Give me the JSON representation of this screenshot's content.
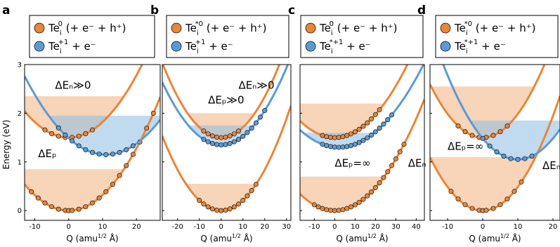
{
  "figure": {
    "ylabel": "Energy  (eV)",
    "xlabel_main": "Q (amu",
    "xlabel_sup": "1/2",
    "xlabel_end": " Å)"
  },
  "colors": {
    "orange": "#E8863A",
    "blue": "#5B9BD5",
    "orange_fill": "#F2B07E",
    "blue_fill": "#8DBBE3",
    "frame": "#000000"
  },
  "chart_data": [
    {
      "type": "line",
      "panel_label": "a",
      "legend": [
        {
          "color": "orange",
          "main": "Te",
          "sub": "i",
          "sup": "0",
          "rest": " (+ e⁻ + h⁺)"
        },
        {
          "color": "blue",
          "main": "Te",
          "sub": "i",
          "sup": "+1",
          "rest": " + e⁻"
        }
      ],
      "xlim": [
        -13,
        27
      ],
      "ylim": [
        -0.2,
        3.0
      ],
      "xticks": [
        -10,
        0,
        10,
        20
      ],
      "yticks": [
        0,
        1,
        2,
        3
      ],
      "series": [
        {
          "color": "orange",
          "min_x": 0,
          "min_y": 0.0,
          "curv": 0.0032,
          "pts": [
            -11,
            -9,
            -7,
            -5,
            -3,
            -1,
            0,
            1,
            3,
            5,
            7,
            9,
            11,
            13,
            15,
            17,
            19,
            21,
            23,
            25
          ]
        },
        {
          "color": "orange",
          "min_x": 0,
          "min_y": 1.5,
          "curv": 0.0032,
          "pts": [
            -7,
            -5,
            -3,
            -1,
            1,
            3,
            5,
            7
          ]
        },
        {
          "color": "blue",
          "min_x": 11,
          "min_y": 1.15,
          "curv": 0.0028,
          "pts": [
            -3,
            -1,
            1,
            3,
            5,
            7,
            9,
            11,
            13,
            15,
            17,
            19
          ]
        }
      ],
      "fills": [
        {
          "color": "orange",
          "min_x": 0,
          "min_y": 0.0,
          "curv": 0.0032,
          "top": 0.85
        },
        {
          "color": "orange",
          "min_x": 0,
          "min_y": 1.5,
          "curv": 0.0032,
          "top": 2.35
        },
        {
          "color": "blue",
          "min_x": 11,
          "min_y": 1.15,
          "curv": 0.0028,
          "top": 1.95
        }
      ],
      "annotations": [
        {
          "text": "ΔEₙ≫0",
          "x": -4,
          "y": 2.5
        },
        {
          "text": "ΔEₚ",
          "x": -9,
          "y": 1.1
        }
      ]
    },
    {
      "type": "line",
      "panel_label": "b",
      "legend": [
        {
          "color": "orange",
          "main": "Te",
          "sub": "i",
          "sup": "*0",
          "rest": " (+ e⁻ + h⁺)"
        },
        {
          "color": "blue",
          "main": "Te",
          "sub": "i",
          "sup": "+1",
          "rest": " + e⁻"
        }
      ],
      "xlim": [
        -27,
        32
      ],
      "ylim": [
        -0.2,
        3.0
      ],
      "xticks": [
        -20,
        -10,
        0,
        10,
        20,
        30
      ],
      "yticks": [
        0,
        1,
        2,
        3
      ],
      "series": [
        {
          "color": "orange",
          "min_x": 0,
          "min_y": 0.0,
          "curv": 0.0031,
          "pts": [
            -10,
            -8,
            -6,
            -4,
            -2,
            0,
            2,
            4,
            6,
            8,
            10,
            12,
            14,
            16
          ]
        },
        {
          "color": "orange",
          "min_x": 0,
          "min_y": 1.5,
          "curv": 0.0031,
          "pts": [
            -8,
            -6,
            -4,
            -2,
            0,
            2,
            4,
            6,
            8
          ]
        },
        {
          "color": "blue",
          "min_x": 0,
          "min_y": 1.35,
          "curv": 0.0026,
          "pts": [
            -8,
            -6,
            -4,
            -2,
            0,
            2,
            4,
            6,
            8,
            10,
            12,
            14,
            16,
            18,
            20
          ]
        }
      ],
      "fills": [
        {
          "color": "orange",
          "min_x": 0,
          "min_y": 0.0,
          "curv": 0.0031,
          "top": 0.55
        },
        {
          "color": "orange",
          "min_x": 0,
          "min_y": 1.5,
          "curv": 0.0031,
          "top": 2.0
        },
        {
          "color": "blue",
          "min_x": 0,
          "min_y": 1.35,
          "curv": 0.0026,
          "top": 1.75
        }
      ],
      "annotations": [
        {
          "text": "ΔEₙ≫0",
          "x": 8,
          "y": 2.5
        },
        {
          "text": "ΔEₚ≫0",
          "x": -6,
          "y": 2.2
        }
      ]
    },
    {
      "type": "line",
      "panel_label": "c",
      "legend": [
        {
          "color": "orange",
          "main": "Te",
          "sub": "i",
          "sup": "0",
          "rest": " (+ e⁻ + h⁺)"
        },
        {
          "color": "blue",
          "main": "Te",
          "sub": "i",
          "sup": "*+1",
          "rest": " + e⁻"
        }
      ],
      "xlim": [
        -17,
        44
      ],
      "ylim": [
        -0.2,
        3.0
      ],
      "xticks": [
        -10,
        0,
        10,
        20,
        30,
        40
      ],
      "yticks": [
        0,
        1,
        2,
        3
      ],
      "series": [
        {
          "color": "orange",
          "min_x": 0,
          "min_y": 0.0,
          "curv": 0.0018,
          "pts": [
            -10,
            -8,
            -6,
            -4,
            -2,
            0,
            2,
            4,
            6,
            8,
            10,
            12,
            14,
            16,
            18,
            20,
            22,
            24,
            26,
            28,
            30,
            32,
            34
          ]
        },
        {
          "color": "orange",
          "min_x": 0,
          "min_y": 1.5,
          "curv": 0.0018,
          "pts": [
            -6,
            -4,
            -2,
            0,
            2,
            4,
            6,
            8,
            10,
            12,
            14,
            16,
            18,
            20,
            22
          ]
        },
        {
          "color": "blue",
          "min_x": 2,
          "min_y": 1.3,
          "curv": 0.0015,
          "pts": [
            -6,
            -4,
            -2,
            0,
            2,
            4,
            6,
            8,
            10,
            12,
            14,
            16,
            18,
            20,
            22,
            24,
            26,
            28
          ]
        }
      ],
      "fills": [
        {
          "color": "orange",
          "min_x": 0,
          "min_y": 0.0,
          "curv": 0.0018,
          "top": 0.7
        },
        {
          "color": "orange",
          "min_x": 0,
          "min_y": 1.5,
          "curv": 0.0018,
          "top": 2.2
        },
        {
          "color": "blue",
          "min_x": 2,
          "min_y": 1.3,
          "curv": 0.0015,
          "top": 1.6
        }
      ],
      "annotations": [
        {
          "text": "ΔEₚ=∞",
          "x": 0,
          "y": 0.9
        },
        {
          "text": "ΔEₙ",
          "x": 36,
          "y": 0.9
        }
      ]
    },
    {
      "type": "line",
      "panel_label": "d",
      "legend": [
        {
          "color": "orange",
          "main": "Te",
          "sub": "i",
          "sup": "*0",
          "rest": " (+ e⁻ + h⁺)"
        },
        {
          "color": "blue",
          "main": "Te",
          "sub": "i",
          "sup": "*+1",
          "rest": " + e⁻"
        }
      ],
      "xlim": [
        -15,
        22
      ],
      "ylim": [
        -0.2,
        3.0
      ],
      "xticks": [
        -10,
        0,
        10,
        20
      ],
      "yticks": [
        0,
        1,
        2,
        3
      ],
      "series": [
        {
          "color": "orange",
          "min_x": 0,
          "min_y": 0.0,
          "curv": 0.0045,
          "pts": [
            -9,
            -7,
            -5,
            -3,
            -1,
            0,
            1,
            3,
            5,
            7,
            9,
            11
          ]
        },
        {
          "color": "orange",
          "min_x": 0,
          "min_y": 1.5,
          "curv": 0.0045,
          "pts": [
            -7,
            -5,
            -3,
            -1,
            1,
            3,
            5,
            7
          ]
        },
        {
          "color": "blue",
          "min_x": 10,
          "min_y": 1.05,
          "curv": 0.004,
          "pts": [
            0,
            2,
            4,
            6,
            8,
            10,
            12,
            14
          ]
        }
      ],
      "fills": [
        {
          "color": "orange",
          "min_x": 0,
          "min_y": 0.0,
          "curv": 0.0045,
          "top": 1.1
        },
        {
          "color": "orange",
          "min_x": 0,
          "min_y": 1.5,
          "curv": 0.0045,
          "top": 2.55
        },
        {
          "color": "blue",
          "min_x": 10,
          "min_y": 1.05,
          "curv": 0.004,
          "top": 1.85
        }
      ],
      "annotations": [
        {
          "text": "ΔEₚ=∞",
          "x": -10,
          "y": 1.25
        },
        {
          "text": "ΔEₙ",
          "x": 17,
          "y": 0.85
        }
      ]
    }
  ]
}
